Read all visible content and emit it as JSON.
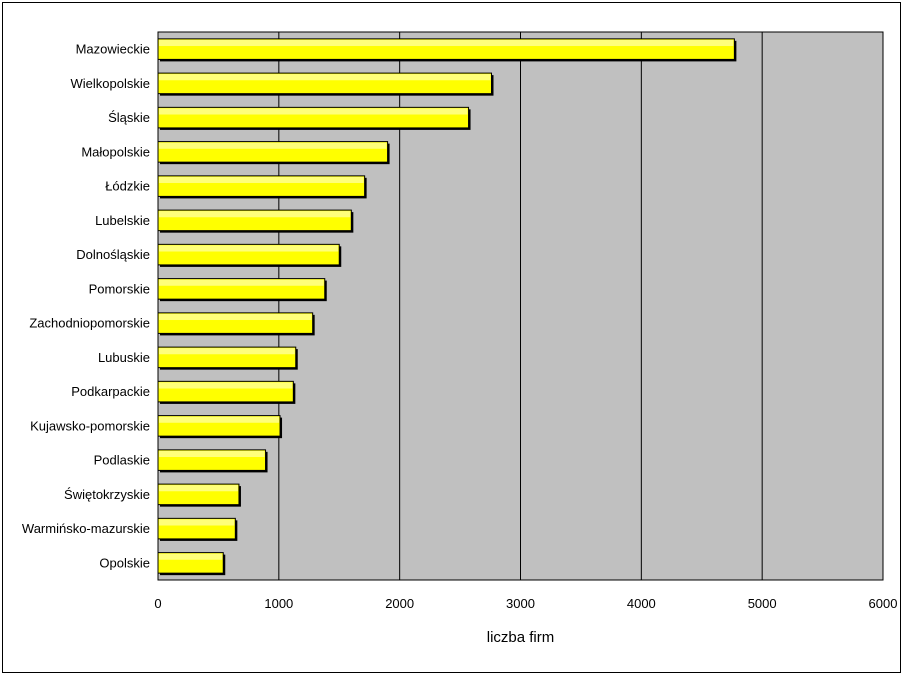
{
  "chart_data": {
    "type": "bar",
    "orientation": "horizontal",
    "categories": [
      "Mazowieckie",
      "Wielkopolskie",
      "Śląskie",
      "Małopolskie",
      "Łódzkie",
      "Lubelskie",
      "Dolnośląskie",
      "Pomorskie",
      "Zachodniopomorskie",
      "Lubuskie",
      "Podkarpackie",
      "Kujawsko-pomorskie",
      "Podlaskie",
      "Świętokrzyskie",
      "Warmińsko-mazurskie",
      "Opolskie"
    ],
    "values": [
      4770,
      2760,
      2570,
      1900,
      1710,
      1600,
      1500,
      1380,
      1280,
      1140,
      1120,
      1010,
      890,
      670,
      640,
      540
    ],
    "xlabel": "liczba firm",
    "xlim": [
      0,
      6000
    ],
    "xticks": [
      0,
      1000,
      2000,
      3000,
      4000,
      5000,
      6000
    ],
    "grid": "vertical",
    "colors": {
      "bar_fill": "#ffff00",
      "bar_edge": "#000000",
      "plot_background": "#c0c0c0",
      "gridline": "#000000"
    }
  }
}
